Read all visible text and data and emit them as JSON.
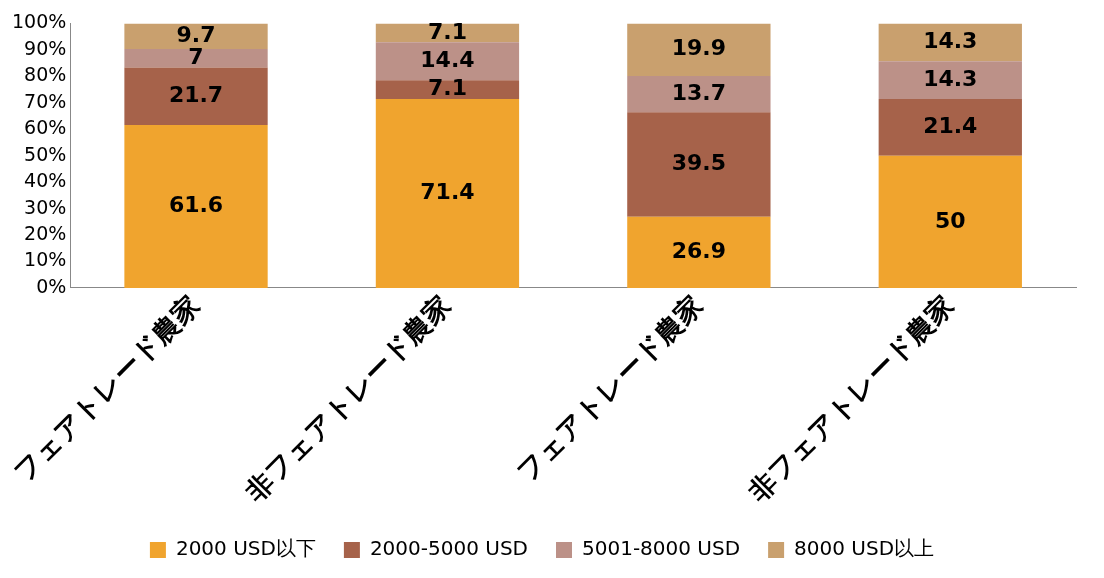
{
  "chart_data": {
    "type": "bar",
    "stacked": true,
    "categories": [
      "フェアトレード農家",
      "非フェアトレード農家",
      "フェアトレード農家",
      "非フェアトレード農家"
    ],
    "series": [
      {
        "name": "2000 USD以下",
        "color": "#f0a42e",
        "values": [
          61.6,
          71.4,
          26.9,
          50
        ]
      },
      {
        "name": "2000-5000 USD",
        "color": "#a6624a",
        "values": [
          21.7,
          7.1,
          39.5,
          21.4
        ]
      },
      {
        "name": "5001-8000 USD",
        "color": "#bc9188",
        "values": [
          7,
          14.4,
          13.7,
          14.3
        ]
      },
      {
        "name": "8000 USD以上",
        "color": "#c9a06e",
        "values": [
          9.7,
          7.1,
          19.9,
          14.3
        ]
      }
    ],
    "ylim": [
      0,
      100
    ],
    "yticks": [
      {
        "value": 0,
        "label": "0%"
      },
      {
        "value": 10,
        "label": "10%"
      },
      {
        "value": 20,
        "label": "20%"
      },
      {
        "value": 30,
        "label": "30%"
      },
      {
        "value": 40,
        "label": "40%"
      },
      {
        "value": 50,
        "label": "50%"
      },
      {
        "value": 60,
        "label": "60%"
      },
      {
        "value": 70,
        "label": "70%"
      },
      {
        "value": 80,
        "label": "80%"
      },
      {
        "value": 90,
        "label": "90%"
      },
      {
        "value": 100,
        "label": "100%"
      }
    ],
    "data_labels": true,
    "grid": false,
    "legend": "bottom"
  }
}
